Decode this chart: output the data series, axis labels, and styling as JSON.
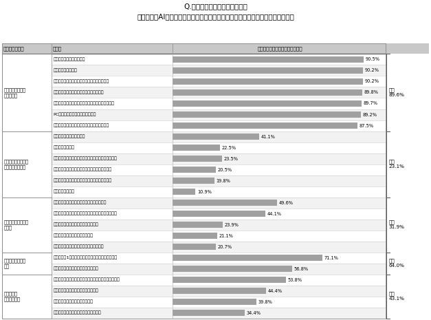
{
  "title_line1": "Q.あなたの現在の仕事のうち、",
  "title_line2": "システム、AI、ロボット等の自動化手段に代替されると感じる業務はなんですか",
  "col_header_group": "業務のグループ",
  "col_header_group2": "手順やルールが決",
  "col_header_task": "業務例",
  "col_header_rate": "「代替されると思う」回答者比率",
  "groups": [
    {
      "name": "手順やルールが決\nまった業務",
      "avg_label": "平均\n89.6%",
      "tasks": [
        {
          "name": "マニュアルに従い行う業務",
          "value": 90.5
        },
        {
          "name": "数値を集計する業務",
          "value": 90.2
        },
        {
          "name": "決められた手順に従い、申請書を作成する業務",
          "value": 90.2
        },
        {
          "name": "日々、ルーティンとして繰り返される業務",
          "value": 89.8
        },
        {
          "name": "決められた手順に従い、ミスをせずにやりきる業務",
          "value": 89.7
        },
        {
          "name": "PCに向かって情報を入力する業務",
          "value": 89.2
        },
        {
          "name": "指示されたことを指示されたとおりに行う業務",
          "value": 87.5
        }
      ]
    },
    {
      "name": "コミュニケーション\nを必要とする業務",
      "avg_label": "平均\n23.1%",
      "tasks": [
        {
          "name": "他者にアドバイスする業務",
          "value": 41.1
        },
        {
          "name": "マネジメント業務",
          "value": 22.5
        },
        {
          "name": "チームのメンバーと話し作戦や行動計画を決める業務",
          "value": 23.5
        },
        {
          "name": "相手の意図を汲み取り、臨機応変に対応する業務",
          "value": 20.5
        },
        {
          "name": "他社とコミュケーションを取りながら進める業務",
          "value": 19.8
        },
        {
          "name": "部下や後輩の育成",
          "value": 10.9
        }
      ]
    },
    {
      "name": "創意工夫が求められ\nる業務",
      "avg_label": "平均\n31.9%",
      "tasks": [
        {
          "name": "複数のものを組み合わせてアレンジする業務",
          "value": 49.6
        },
        {
          "name": "事業やサービスを実現するための骨子をまとめる業務",
          "value": 44.1
        },
        {
          "name": "新たな事業やサービスを企画する業務",
          "value": 23.9
        },
        {
          "name": "前例のない課題に答えを出す業務",
          "value": 21.1
        },
        {
          "name": "新しいアイデアや工夫する点を考える業務",
          "value": 20.7
        }
      ]
    },
    {
      "name": "タスクを管理する\n業務",
      "avg_label": "平均\n64.0%",
      "tasks": [
        {
          "name": "手帳などに1日の作業の計画を書き込み整理する業務",
          "value": 71.1
        },
        {
          "name": "自分自身の目標と予定を管理する業務",
          "value": 56.8
        }
      ]
    },
    {
      "name": "課題解決や\nプロジェクト",
      "avg_label": "平均\n43.1%",
      "tasks": [
        {
          "name": "前例や過去の事例を参照し、課題解決の糸口を探す業務",
          "value": 53.8
        },
        {
          "name": "問題点を発見し、課題を特定する業務",
          "value": 44.4
        },
        {
          "name": "期間限定の、繰り返しのない業務",
          "value": 39.8
        },
        {
          "name": "目標を達成したら解散するプロジェクト",
          "value": 34.4
        }
      ]
    }
  ],
  "bar_color": "#a0a0a0",
  "header_bg": "#c8c8c8",
  "row_bg_odd": "#f2f2f2",
  "row_bg_even": "#ffffff",
  "border_color": "#888888",
  "text_color": "#000000",
  "avg_color": "#333333"
}
